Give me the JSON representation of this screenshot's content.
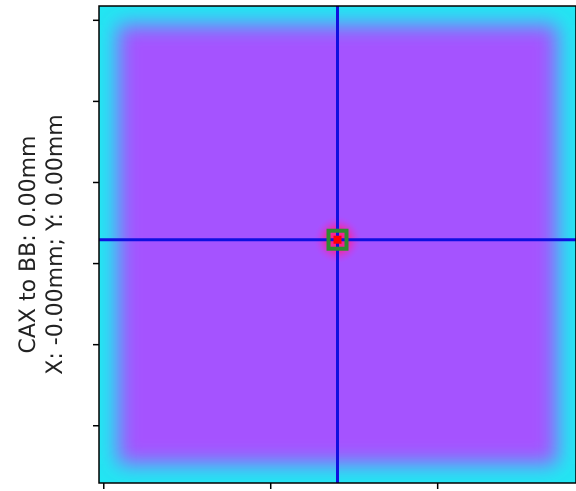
{
  "chart_data": {
    "type": "heatmap",
    "title": "",
    "ylabel_lines": [
      "CAX to BB: 0.00mm",
      "X: -0.00mm; Y: 0.00mm"
    ],
    "xlabel": "",
    "xlim": [
      0,
      1
    ],
    "ylim": [
      0,
      1
    ],
    "x_ticks": [
      0.01,
      0.36,
      0.71
    ],
    "y_ticks": [
      0.03,
      0.2,
      0.37,
      0.54,
      0.71,
      0.88
    ],
    "grid": false,
    "field": {
      "x0": 0.04,
      "y0": 0.04,
      "x1": 0.96,
      "y1": 0.96
    },
    "crosshair": {
      "x": 0.5,
      "y": 0.49
    },
    "bb": {
      "x": 0.5,
      "y": 0.49
    },
    "colors": {
      "background_edge": "#22e6f2",
      "field": "#a552ff",
      "crosshair": "#1010e0",
      "bb_glow": "#ff2090",
      "bb_marker": "#2e8b2e",
      "bb_center": "#ff0000"
    }
  }
}
